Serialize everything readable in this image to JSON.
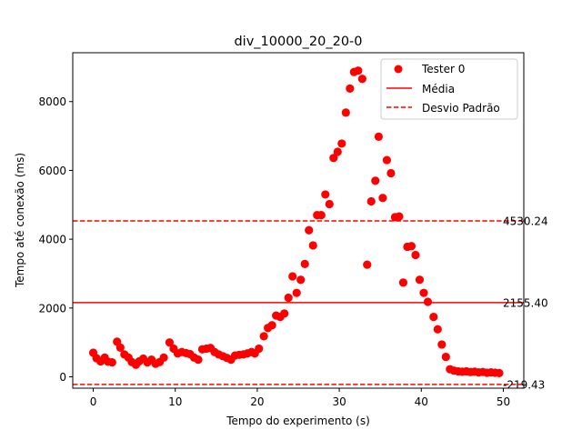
{
  "chart_data": {
    "type": "scatter",
    "title": "div_10000_20_20-0",
    "xlabel": "Tempo do experimento (s)",
    "ylabel": "Tempo até conexão (ms)",
    "xlim": [
      -2.5,
      52.5
    ],
    "ylim": [
      -330,
      9420
    ],
    "xticks": [
      0,
      10,
      20,
      30,
      40,
      50
    ],
    "yticks": [
      0,
      2000,
      4000,
      6000,
      8000
    ],
    "grid": false,
    "legend_position": "top-right",
    "legend": [
      {
        "label": "Tester 0",
        "style": "marker",
        "color": "#ff0000"
      },
      {
        "label": "Média",
        "style": "solid",
        "color": "#ff0000"
      },
      {
        "label": "Desvio Padrão",
        "style": "dashed",
        "color": "#ff0000"
      }
    ],
    "reference_lines": [
      {
        "name": "Média",
        "value": 2155.4,
        "label": "2155.40",
        "style": "solid"
      },
      {
        "name": "Desvio Padrão",
        "value": 4530.24,
        "label": "4530.24",
        "style": "dashed"
      },
      {
        "name": "Desvio Padrão",
        "value": -219.43,
        "label": "-219.43",
        "style": "dashed"
      }
    ],
    "series": [
      {
        "name": "Tester 0",
        "color": "#ff0000",
        "points": [
          [
            0.0,
            700
          ],
          [
            0.4,
            540
          ],
          [
            0.9,
            450
          ],
          [
            1.4,
            560
          ],
          [
            1.8,
            440
          ],
          [
            2.3,
            420
          ],
          [
            2.9,
            1020
          ],
          [
            3.3,
            850
          ],
          [
            3.8,
            650
          ],
          [
            4.3,
            560
          ],
          [
            4.7,
            430
          ],
          [
            5.2,
            350
          ],
          [
            5.6,
            450
          ],
          [
            6.1,
            530
          ],
          [
            6.6,
            420
          ],
          [
            7.1,
            500
          ],
          [
            7.6,
            380
          ],
          [
            8.1,
            430
          ],
          [
            8.6,
            560
          ],
          [
            9.3,
            1000
          ],
          [
            9.8,
            820
          ],
          [
            10.3,
            680
          ],
          [
            10.8,
            720
          ],
          [
            11.3,
            690
          ],
          [
            11.8,
            660
          ],
          [
            12.3,
            560
          ],
          [
            12.8,
            500
          ],
          [
            13.3,
            800
          ],
          [
            13.8,
            820
          ],
          [
            14.3,
            840
          ],
          [
            14.8,
            720
          ],
          [
            15.3,
            650
          ],
          [
            15.8,
            600
          ],
          [
            16.3,
            550
          ],
          [
            16.8,
            500
          ],
          [
            17.3,
            620
          ],
          [
            17.8,
            640
          ],
          [
            18.3,
            650
          ],
          [
            18.8,
            680
          ],
          [
            19.3,
            720
          ],
          [
            19.7,
            680
          ],
          [
            20.2,
            820
          ],
          [
            20.8,
            1180
          ],
          [
            21.3,
            1420
          ],
          [
            21.8,
            1500
          ],
          [
            22.3,
            1780
          ],
          [
            22.8,
            1740
          ],
          [
            23.3,
            1840
          ],
          [
            23.8,
            2300
          ],
          [
            24.3,
            2920
          ],
          [
            24.8,
            2440
          ],
          [
            25.3,
            2820
          ],
          [
            25.8,
            3280
          ],
          [
            26.3,
            4260
          ],
          [
            26.8,
            3820
          ],
          [
            27.3,
            4700
          ],
          [
            27.8,
            4700
          ],
          [
            28.3,
            5300
          ],
          [
            28.8,
            5020
          ],
          [
            29.3,
            6360
          ],
          [
            29.8,
            6540
          ],
          [
            30.3,
            6780
          ],
          [
            30.8,
            7680
          ],
          [
            31.3,
            8380
          ],
          [
            31.8,
            8860
          ],
          [
            32.3,
            8900
          ],
          [
            32.8,
            8660
          ],
          [
            33.4,
            3260
          ],
          [
            33.9,
            5100
          ],
          [
            34.4,
            5700
          ],
          [
            34.8,
            6980
          ],
          [
            35.3,
            5200
          ],
          [
            35.8,
            6300
          ],
          [
            36.3,
            5920
          ],
          [
            36.8,
            4640
          ],
          [
            37.3,
            4660
          ],
          [
            37.8,
            2740
          ],
          [
            38.3,
            3780
          ],
          [
            38.8,
            3800
          ],
          [
            39.3,
            3540
          ],
          [
            39.8,
            2820
          ],
          [
            40.3,
            2440
          ],
          [
            40.8,
            2180
          ],
          [
            41.5,
            1740
          ],
          [
            42.0,
            1380
          ],
          [
            42.5,
            940
          ],
          [
            43.0,
            580
          ],
          [
            43.5,
            220
          ],
          [
            44.0,
            180
          ],
          [
            44.5,
            160
          ],
          [
            45.0,
            150
          ],
          [
            45.5,
            160
          ],
          [
            46.0,
            140
          ],
          [
            46.5,
            150
          ],
          [
            47.0,
            130
          ],
          [
            47.5,
            140
          ],
          [
            48.0,
            120
          ],
          [
            48.5,
            130
          ],
          [
            49.0,
            120
          ],
          [
            49.5,
            110
          ]
        ]
      }
    ]
  }
}
